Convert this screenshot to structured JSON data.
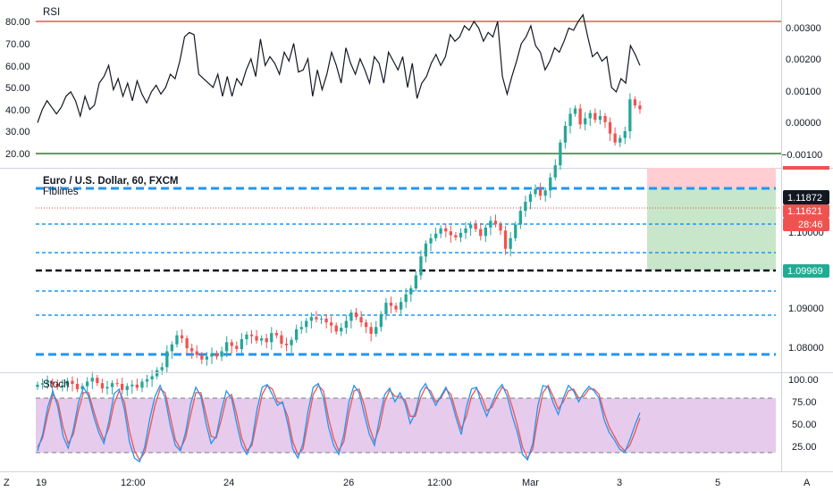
{
  "colors": {
    "up": "#26a69a",
    "down": "#ef5350",
    "rsi_line": "#131722",
    "rsi_overbought": "#ef5350",
    "rsi_oversold": "#2e7d32",
    "fib_blue": "#2196f3",
    "stoch_k": "#2196f3",
    "stoch_d": "#ef5350",
    "stoch_band": "#e1bee7",
    "target_zone": "#c8e6c9",
    "stop_zone": "#ffcdd2",
    "badge_dark": "#131722",
    "badge_red": "#ef5350",
    "badge_green": "#22ab94"
  },
  "rsi_panel": {
    "title": "RSI",
    "left_ticks": [
      "80.00",
      "70.00",
      "60.00",
      "50.00",
      "40.00",
      "30.00",
      "20.00"
    ],
    "right_ticks": [
      "0.00300",
      "0.00200",
      "0.00100",
      "0.00000",
      "−0.00100"
    ],
    "overbought": 80,
    "oversold": 20
  },
  "price_panel": {
    "title": "Euro / U.S. Dollar, 60, FXCM",
    "indicator_label": "Fiblines",
    "right_ticks": [
      "1.10000",
      "1.09000",
      "1.08000"
    ],
    "last_price": "1.11872",
    "current_price": "1.11621",
    "countdown": "28:46",
    "entry_level": "1.09969"
  },
  "stoch_panel": {
    "title": "Stoch",
    "right_ticks": [
      "100.00",
      "75.00",
      "50.00",
      "25.00"
    ],
    "upper_band": 80,
    "lower_band": 20
  },
  "time_axis": {
    "labels": [
      "19",
      "12:00",
      "24",
      "26",
      "12:00",
      "Mar",
      "3",
      "5"
    ],
    "left_button": "Z",
    "right_button": "A"
  },
  "chart_data": [
    {
      "type": "line",
      "title": "RSI",
      "ylim": [
        15,
        90
      ],
      "reference_lines": [
        80,
        20
      ],
      "series": [
        {
          "name": "RSI",
          "values": [
            34,
            40,
            44,
            41,
            38,
            41,
            46,
            48,
            44,
            37,
            46,
            40,
            42,
            52,
            55,
            60,
            49,
            54,
            46,
            52,
            44,
            53,
            47,
            43,
            48,
            51,
            47,
            50,
            56,
            54,
            62,
            73,
            75,
            74,
            56,
            54,
            52,
            50,
            56,
            46,
            55,
            46,
            54,
            51,
            58,
            63,
            55,
            72,
            60,
            64,
            61,
            56,
            66,
            62,
            70,
            57,
            58,
            63,
            46,
            58,
            49,
            56,
            66,
            60,
            52,
            68,
            61,
            56,
            63,
            58,
            52,
            64,
            61,
            52,
            66,
            62,
            58,
            64,
            50,
            61,
            45,
            52,
            55,
            61,
            65,
            60,
            64,
            74,
            71,
            73,
            78,
            76,
            80,
            77,
            71,
            75,
            73,
            80,
            55,
            47,
            55,
            62,
            70,
            73,
            78,
            69,
            66,
            58,
            62,
            68,
            66,
            71,
            77,
            76,
            80,
            83,
            73,
            64,
            66,
            62,
            64,
            50,
            48,
            54,
            52,
            69,
            65,
            60
          ]
        }
      ]
    },
    {
      "type": "candlestick",
      "title": "Euro / U.S. Dollar, 60, FXCM",
      "ylim": [
        1.0765,
        1.1225
      ],
      "reference_lines": [
        1.11872,
        1.11621,
        1.10985,
        1.1047,
        1.09969,
        1.0946,
        1.088,
        1.0777
      ],
      "series": [
        {
          "name": "EUR/USD",
          "values": [
            1.0799,
            1.0801,
            1.0803,
            1.08,
            1.0796,
            1.0798,
            1.0804,
            1.08,
            1.0793,
            1.0797,
            1.0803,
            1.0808,
            1.0801,
            1.0794,
            1.0796,
            1.0801,
            1.08,
            1.0792,
            1.0797,
            1.0799,
            1.0795,
            1.0803,
            1.0806,
            1.081,
            1.0818,
            1.0822,
            1.0843,
            1.0852,
            1.0864,
            1.086,
            1.0847,
            1.0843,
            1.0838,
            1.0832,
            1.0836,
            1.084,
            1.0836,
            1.0843,
            1.0855,
            1.085,
            1.0846,
            1.0859,
            1.0865,
            1.0863,
            1.0857,
            1.086,
            1.0855,
            1.0867,
            1.0864,
            1.0853,
            1.0851,
            1.0858,
            1.0872,
            1.0875,
            1.0883,
            1.0888,
            1.0885,
            1.0886,
            1.0881,
            1.0877,
            1.0869,
            1.0874,
            1.0883,
            1.0894,
            1.0888,
            1.0881,
            1.0875,
            1.0866,
            1.0875,
            1.0892,
            1.0907,
            1.0903,
            1.0898,
            1.0908,
            1.0918,
            1.0926,
            1.0943,
            1.0968,
            1.0985,
            1.0992,
            1.0998,
            1.1005,
            1.1001,
            1.0996,
            1.0993,
            1.0999,
            1.1005,
            1.101,
            1.1004,
            1.0995,
            1.1006,
            1.1015,
            1.101,
            1.1002,
            1.0978,
            1.0992,
            1.101,
            1.1028,
            1.104,
            1.105,
            1.1057,
            1.1048,
            1.1055,
            1.1072,
            1.1088,
            1.1118,
            1.114,
            1.1156,
            1.1163,
            1.1142,
            1.115,
            1.1157,
            1.1148,
            1.1153,
            1.1145,
            1.113,
            1.1118,
            1.1124,
            1.1133,
            1.1175,
            1.1167,
            1.1162
          ]
        }
      ]
    },
    {
      "type": "line",
      "title": "Stoch",
      "ylim": [
        0,
        100
      ],
      "reference_lines": [
        80,
        20
      ],
      "series": [
        {
          "name": "K",
          "values": [
            22,
            40,
            70,
            88,
            70,
            38,
            25,
            45,
            75,
            92,
            82,
            60,
            42,
            30,
            55,
            85,
            90,
            68,
            32,
            14,
            10,
            26,
            58,
            82,
            94,
            80,
            50,
            28,
            22,
            42,
            74,
            92,
            82,
            52,
            30,
            38,
            66,
            88,
            80,
            52,
            28,
            18,
            32,
            68,
            92,
            95,
            84,
            72,
            76,
            52,
            24,
            14,
            30,
            66,
            92,
            96,
            80,
            48,
            28,
            18,
            40,
            76,
            94,
            86,
            62,
            40,
            28,
            58,
            84,
            91,
            76,
            86,
            74,
            52,
            64,
            88,
            96,
            84,
            72,
            82,
            92,
            78,
            58,
            40,
            70,
            90,
            92,
            74,
            60,
            74,
            88,
            95,
            82,
            60,
            42,
            18,
            12,
            30,
            72,
            94,
            92,
            75,
            62,
            80,
            94,
            88,
            76,
            86,
            93,
            88,
            80,
            56,
            42,
            34,
            24,
            20,
            34,
            50,
            64
          ]
        },
        {
          "name": "D",
          "values": [
            26,
            36,
            62,
            84,
            76,
            48,
            30,
            40,
            66,
            86,
            86,
            66,
            48,
            34,
            48,
            74,
            88,
            76,
            44,
            22,
            12,
            20,
            46,
            72,
            90,
            86,
            60,
            34,
            24,
            36,
            62,
            86,
            86,
            62,
            38,
            36,
            56,
            80,
            84,
            62,
            36,
            22,
            28,
            56,
            84,
            94,
            90,
            76,
            74,
            60,
            32,
            18,
            24,
            54,
            84,
            94,
            88,
            58,
            36,
            22,
            32,
            64,
            88,
            90,
            72,
            48,
            32,
            48,
            76,
            89,
            82,
            82,
            78,
            60,
            60,
            80,
            92,
            88,
            76,
            80,
            90,
            84,
            64,
            46,
            60,
            82,
            91,
            82,
            66,
            70,
            82,
            92,
            88,
            70,
            50,
            26,
            14,
            24,
            58,
            86,
            94,
            82,
            68,
            76,
            88,
            90,
            80,
            82,
            90,
            90,
            84,
            64,
            48,
            38,
            28,
            22,
            28,
            42,
            58
          ]
        }
      ]
    }
  ]
}
